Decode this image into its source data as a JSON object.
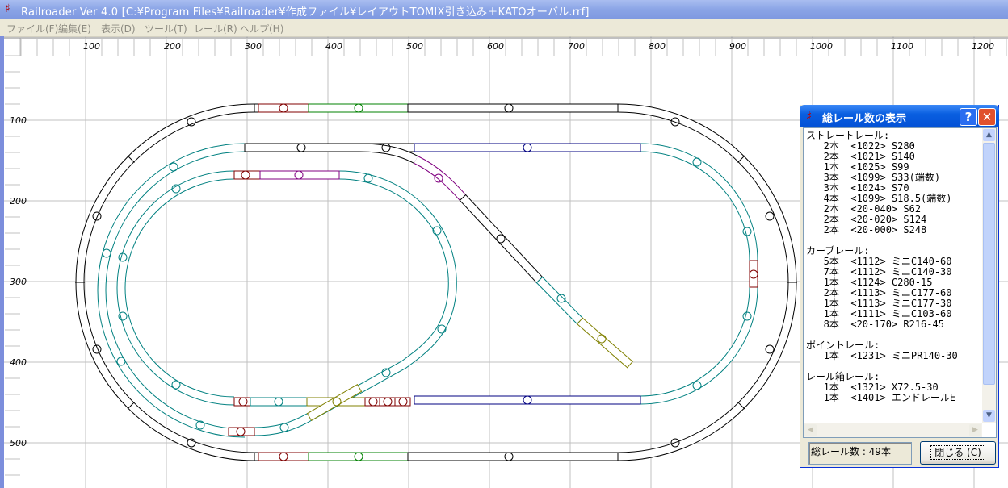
{
  "window": {
    "title": "Railroader Ver 4.0  [C:¥Program Files¥Railroader¥作成ファイル¥レイアウトTOMIX引き込み＋KATOオーバル.rrf]",
    "app_icon": "rail-icon"
  },
  "menu": [
    {
      "label": "ファイル(F)"
    },
    {
      "label": "編集(E)"
    },
    {
      "label": "表示(D)"
    },
    {
      "label": "ツール(T)"
    },
    {
      "label": "レール(R)"
    },
    {
      "label": "ヘルプ(H)"
    }
  ],
  "ruler": {
    "x_labels": [
      "100",
      "200",
      "300",
      "400",
      "500",
      "600",
      "700",
      "800",
      "900",
      "1000",
      "1100",
      "1200"
    ],
    "y_labels": [
      "100",
      "200",
      "300",
      "400",
      "500"
    ]
  },
  "colors": {
    "kato_oval": "#000000",
    "tomix_curve": "#008080",
    "s280": "#000080",
    "short": "#800000",
    "s124": "#008000",
    "point": "#800080",
    "crossing": "#808000",
    "grid": "#c0c0c0",
    "dialog_title": "#0a5fe0"
  },
  "dialog": {
    "title": "総レール数の表示",
    "help_label": "?",
    "close_label": "✕",
    "lines": [
      "ストレートレール:",
      "   2本  <1022> S280",
      "   2本  <1021> S140",
      "   1本  <1025> S99",
      "   3本  <1099> S33(端数)",
      "   3本  <1024> S70",
      "   4本  <1099> S18.5(端数)",
      "   2本  <20-040> S62",
      "   2本  <20-020> S124",
      "   2本  <20-000> S248",
      "",
      "カーブレール:",
      "   5本  <1112> ミニC140-60",
      "   7本  <1112> ミニC140-30",
      "   1本  <1124> C280-15",
      "   2本  <1113> ミニC177-60",
      "   1本  <1113> ミニC177-30",
      "   1本  <1111> ミニC103-60",
      "   8本  <20-170> R216-45",
      "",
      "ポイントレール:",
      "   1本  <1231> ミニPR140-30",
      "",
      "レール箱レール:",
      "   1本  <1321> X72.5-30",
      "   1本  <1401> エンドレールE"
    ],
    "total": "総レール数 : 49本",
    "close_button": "閉じる (C)"
  }
}
